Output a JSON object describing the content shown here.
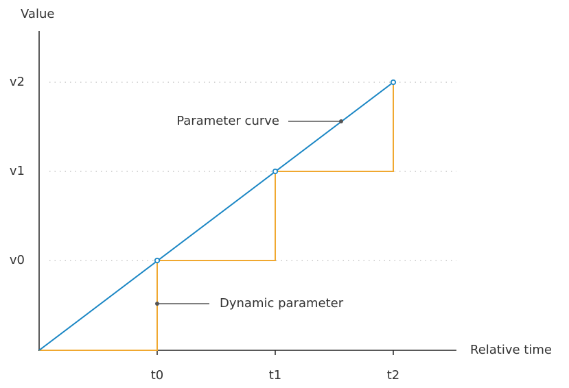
{
  "axes": {
    "y_label": "Value",
    "x_label": "Relative time",
    "x_ticks": [
      "t0",
      "t1",
      "t2"
    ],
    "y_ticks": [
      "v0",
      "v1",
      "v2"
    ]
  },
  "annotations": {
    "parameter_curve": "Parameter curve",
    "dynamic_parameter": "Dynamic parameter"
  }
}
